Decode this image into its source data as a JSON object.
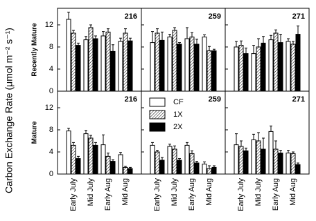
{
  "ylabel": "Carbon Exchange Rate (μmol m⁻² s⁻¹)",
  "chart_data": [
    {
      "type": "bar",
      "title": "216",
      "ylabel": "Recently Mature",
      "ylim": [
        0,
        15
      ],
      "yticks": [
        0,
        4,
        8,
        12
      ],
      "series": [
        {
          "color": "#ffffff",
          "values": [
            13,
            9.3,
            10,
            9
          ],
          "errors": [
            1.3,
            0.6,
            0.8,
            0.6
          ]
        },
        {
          "color": "#ffffff",
          "hatch": "//",
          "values": [
            10.5,
            11.5,
            10.7,
            10.5
          ],
          "errors": [
            0.5,
            0.5,
            0.6,
            0.8
          ]
        },
        {
          "color": "#000000",
          "values": [
            8.3,
            9.5,
            7.2,
            9.1
          ],
          "errors": [
            0.4,
            0.5,
            1.2,
            0.5
          ]
        }
      ]
    },
    {
      "type": "bar",
      "title": "259",
      "ylim": [
        0,
        15
      ],
      "yticks": [
        0,
        4,
        8,
        12
      ],
      "series": [
        {
          "color": "#ffffff",
          "values": [
            8.8,
            9.8,
            9.5,
            9.8
          ],
          "errors": [
            2,
            0.5,
            2,
            0.4
          ]
        },
        {
          "color": "#ffffff",
          "hatch": "//",
          "values": [
            10.5,
            11,
            9.8,
            7.3
          ],
          "errors": [
            0.8,
            0.5,
            0.8,
            0.8
          ]
        },
        {
          "color": "#000000",
          "values": [
            9.2,
            8.5,
            8.5,
            7.3
          ],
          "errors": [
            1.5,
            0.3,
            0.9,
            0.3
          ]
        }
      ]
    },
    {
      "type": "bar",
      "title": "271",
      "ylim": [
        0,
        15
      ],
      "yticks": [
        0,
        4,
        8,
        12
      ],
      "series": [
        {
          "color": "#ffffff",
          "values": [
            8,
            6.8,
            9.3,
            9
          ],
          "errors": [
            1,
            1.5,
            0.8,
            0.5
          ]
        },
        {
          "color": "#ffffff",
          "hatch": "//",
          "values": [
            8.3,
            8,
            10.5,
            8.5
          ],
          "errors": [
            0.8,
            1.5,
            0.6,
            0.5
          ]
        },
        {
          "color": "#000000",
          "values": [
            6.8,
            8.7,
            8.8,
            10.3
          ],
          "errors": [
            1,
            1.2,
            1.5,
            1.5
          ]
        }
      ]
    },
    {
      "type": "bar",
      "title": "216",
      "ylabel": "Mature",
      "ylim": [
        0,
        15
      ],
      "yticks": [
        0,
        4,
        8,
        12
      ],
      "categories": [
        "Early July",
        "Mid July",
        "Early Aug",
        "Mid Aug"
      ],
      "series": [
        {
          "color": "#ffffff",
          "values": [
            7.8,
            7.3,
            5.3,
            3.5
          ],
          "errors": [
            0.5,
            0.6,
            1.8,
            0.4
          ]
        },
        {
          "color": "#ffffff",
          "hatch": "//",
          "values": [
            5.2,
            6.5,
            3.2,
            1.2
          ],
          "errors": [
            0.5,
            0.5,
            0.6,
            0.2
          ]
        },
        {
          "color": "#000000",
          "values": [
            2.8,
            5.2,
            2.3,
            1
          ],
          "errors": [
            0.4,
            0.5,
            0.3,
            0.2
          ]
        }
      ]
    },
    {
      "type": "bar",
      "title": "259",
      "ylim": [
        0,
        15
      ],
      "yticks": [
        0,
        4,
        8,
        12
      ],
      "legend": "upper left",
      "categories": [
        "Early July",
        "Mid July",
        "Early Aug",
        "Mid Aug"
      ],
      "series": [
        {
          "name": "CF",
          "color": "#ffffff",
          "values": [
            5.2,
            5,
            5.2,
            1.8
          ],
          "errors": [
            0.5,
            0.4,
            0.5,
            0.4
          ]
        },
        {
          "name": "1X",
          "color": "#ffffff",
          "hatch": "//",
          "values": [
            4,
            4.5,
            3.7,
            1
          ],
          "errors": [
            0.3,
            0.6,
            0.5,
            0.5
          ]
        },
        {
          "name": "2X",
          "color": "#000000",
          "values": [
            2.5,
            2.5,
            2,
            1.2
          ],
          "errors": [
            0.5,
            0.3,
            0.3,
            0.3
          ]
        }
      ]
    },
    {
      "type": "bar",
      "title": "271",
      "ylim": [
        0,
        15
      ],
      "yticks": [
        0,
        4,
        8,
        12
      ],
      "categories": [
        "Early July",
        "Mid July",
        "Early Aug",
        "Mid Aug"
      ],
      "series": [
        {
          "color": "#ffffff",
          "values": [
            5.3,
            6.2,
            7.7,
            3.8
          ],
          "errors": [
            2,
            1,
            1,
            0.5
          ]
        },
        {
          "color": "#ffffff",
          "hatch": "//",
          "values": [
            5,
            6,
            4.5,
            3.7
          ],
          "errors": [
            1,
            1.5,
            1.5,
            0.3
          ]
        },
        {
          "color": "#000000",
          "values": [
            4.2,
            4.5,
            3.8,
            1.7
          ],
          "errors": [
            0.5,
            2,
            0.5,
            0.3
          ]
        }
      ]
    }
  ]
}
